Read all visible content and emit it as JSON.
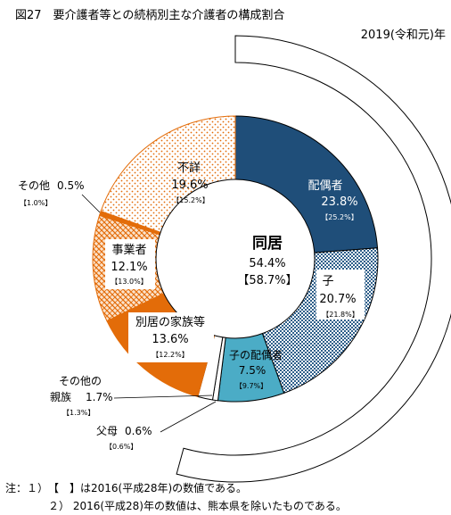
{
  "chart_data": {
    "type": "pie",
    "title": "図27　要介護者等との続柄別主な介護者の構成割合",
    "subtitle": "2019(令和元)年",
    "center_label": {
      "title": "同居",
      "value": "54.4%",
      "prev": "【58.7%】"
    },
    "units": "%",
    "slices": [
      {
        "id": "spouse",
        "label": "配偶者",
        "value": 23.8,
        "value_text": "23.8%",
        "prev_text": "【25.2%】",
        "group": "同居",
        "color": "#1f4e79"
      },
      {
        "id": "child",
        "label": "子",
        "value": 20.7,
        "value_text": "20.7%",
        "prev_text": "【21.8%】",
        "group": "同居",
        "color": "#2e5f8a"
      },
      {
        "id": "child-spouse",
        "label": "子の配偶者",
        "value": 7.5,
        "value_text": "7.5%",
        "prev_text": "【9.7%】",
        "group": "同居",
        "color": "#4bacc6"
      },
      {
        "id": "parent",
        "label": "父母",
        "value": 0.6,
        "value_text": "0.6%",
        "prev_text": "【0.6%】",
        "group": "同居",
        "color": "#ffffff"
      },
      {
        "id": "other-relative",
        "label": "その他の親族",
        "value": 1.7,
        "value_text": "1.7%",
        "prev_text": "【1.3%】",
        "group": "同居",
        "color": "#ffffff"
      },
      {
        "id": "separate-family",
        "label": "別居の家族等",
        "value": 13.6,
        "value_text": "13.6%",
        "prev_text": "【12.2%】",
        "group": "別居",
        "color": "#e36c09"
      },
      {
        "id": "business",
        "label": "事業者",
        "value": 12.1,
        "value_text": "12.1%",
        "prev_text": "【13.0%】",
        "group": "別居",
        "color": "#e36c09"
      },
      {
        "id": "other",
        "label": "その他",
        "value": 0.5,
        "value_text": "0.5%",
        "prev_text": "【1.0%】",
        "group": "別居",
        "color": "#e36c09"
      },
      {
        "id": "unknown",
        "label": "不詳",
        "value": 19.6,
        "value_text": "19.6%",
        "prev_text": "【15.2%】",
        "group": "不詳",
        "color": "#e36c09"
      }
    ],
    "notes": [
      "注：１）　【　】は2016(平成28年)の数値である。",
      "２） 2016(平成28)年の数値は、熊本県を除いたものである。"
    ]
  },
  "ui": {
    "label_other_relative_line1": "その他の",
    "label_other_relative_line2": "親族",
    "label_separate_family": "別居の家族等"
  }
}
